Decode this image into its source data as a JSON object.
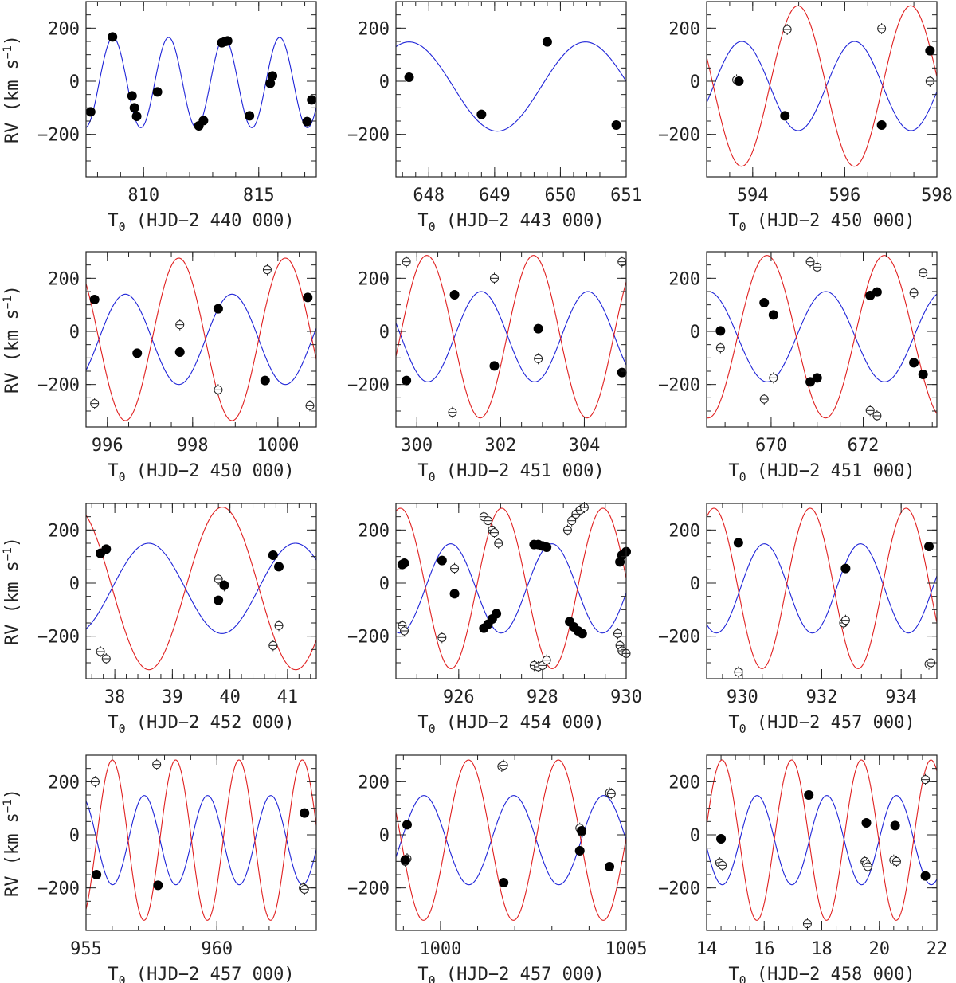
{
  "figure": {
    "ylabel_main": "RV (km s",
    "ylabel_sup": "−1",
    "ylabel_end": ")",
    "xlabel_sub": "0",
    "xlabel_T": "T"
  },
  "chart_data": [
    {
      "type": "scatter",
      "xlim": [
        807.5,
        817.5
      ],
      "ylim": [
        -360,
        300
      ],
      "xticks": [
        810,
        815
      ],
      "xticklabels": [
        "810",
        "815"
      ],
      "yticks": [
        -200,
        0,
        200
      ],
      "yticklabels": [
        "−200",
        "0",
        "200"
      ],
      "xlabel": " (HJD−2 440 000)",
      "blue": {
        "period": 2.413,
        "t0": 808.07,
        "K": 170,
        "gamma": -5
      },
      "red": null,
      "primary": [
        [
          807.7,
          -115
        ],
        [
          808.65,
          167
        ],
        [
          809.5,
          -55
        ],
        [
          809.6,
          -100
        ],
        [
          809.7,
          -132
        ],
        [
          810.6,
          -40
        ],
        [
          812.4,
          -168
        ],
        [
          812.6,
          -148
        ],
        [
          813.4,
          145
        ],
        [
          813.55,
          150
        ],
        [
          813.65,
          152
        ],
        [
          814.6,
          -130
        ],
        [
          815.5,
          -8
        ],
        [
          815.6,
          20
        ],
        [
          817.1,
          -152
        ],
        [
          817.3,
          -70
        ]
      ],
      "secondary": []
    },
    {
      "type": "scatter",
      "xlim": [
        647.5,
        651.0
      ],
      "ylim": [
        -360,
        300
      ],
      "xticks": [
        648,
        649,
        650,
        651
      ],
      "xticklabels": [
        "648",
        "649",
        "650",
        "651"
      ],
      "yticks": [
        -200,
        0,
        200
      ],
      "yticklabels": [
        "−200",
        "0",
        "200"
      ],
      "xlabel": " (HJD−2 443 000)",
      "blue": {
        "period": 2.68,
        "t0": 649.71,
        "K": 168,
        "gamma": -20
      },
      "red": null,
      "primary": [
        [
          647.7,
          15
        ],
        [
          648.8,
          -125
        ],
        [
          649.8,
          148
        ],
        [
          650.85,
          -165
        ]
      ],
      "secondary": []
    },
    {
      "type": "scatter",
      "xlim": [
        593.0,
        598.0
      ],
      "ylim": [
        -360,
        300
      ],
      "xticks": [
        594,
        596,
        598
      ],
      "xticklabels": [
        "594",
        "596",
        "598"
      ],
      "yticks": [
        -200,
        0,
        200
      ],
      "yticklabels": [
        "−200",
        "0",
        "200"
      ],
      "xlabel": " (HJD−2 450 000)",
      "blue": {
        "period": 2.45,
        "t0": 593.15,
        "K": 168,
        "gamma": -18
      },
      "red": {
        "period": 2.45,
        "t0": 594.37,
        "K": 302,
        "gamma": -18
      },
      "primary": [
        [
          593.7,
          0
        ],
        [
          594.7,
          -130
        ],
        [
          596.8,
          -165
        ],
        [
          597.85,
          115
        ]
      ],
      "secondary": [
        [
          593.65,
          5
        ],
        [
          594.75,
          195
        ],
        [
          596.8,
          198
        ],
        [
          597.85,
          0
        ]
      ]
    },
    {
      "type": "scatter",
      "xlim": [
        995.5,
        1000.9
      ],
      "ylim": [
        -360,
        300
      ],
      "xticks": [
        996,
        998,
        1000
      ],
      "xticklabels": [
        "996",
        "998",
        "1000"
      ],
      "yticks": [
        -200,
        0,
        200
      ],
      "yticklabels": [
        "−200",
        "0",
        "200"
      ],
      "xlabel": " (HJD−2 450 000)",
      "blue": {
        "period": 2.5,
        "t0": 995.8,
        "K": 170,
        "gamma": -30
      },
      "red": {
        "period": 2.5,
        "t0": 997.05,
        "K": 306,
        "gamma": -30
      },
      "primary": [
        [
          995.7,
          120
        ],
        [
          996.7,
          -82
        ],
        [
          997.7,
          -78
        ],
        [
          998.6,
          85
        ],
        [
          999.7,
          -185
        ],
        [
          1000.7,
          128
        ]
      ],
      "secondary": [
        [
          995.7,
          -272
        ],
        [
          997.7,
          25
        ],
        [
          998.6,
          -220
        ],
        [
          999.75,
          232
        ],
        [
          1000.75,
          -280
        ]
      ]
    },
    {
      "type": "scatter",
      "xlim": [
        299.5,
        305.0
      ],
      "ylim": [
        -360,
        300
      ],
      "xticks": [
        300,
        302,
        304
      ],
      "xticklabels": [
        "300",
        "302",
        "304"
      ],
      "yticks": [
        -200,
        0,
        200
      ],
      "yticklabels": [
        "−200",
        "0",
        "200"
      ],
      "xlabel": " (HJD−2 451 000)",
      "blue": {
        "period": 2.55,
        "t0": 300.9,
        "K": 170,
        "gamma": -20
      },
      "red": {
        "period": 2.55,
        "t0": 299.6,
        "K": 306,
        "gamma": -20
      },
      "primary": [
        [
          299.75,
          -185
        ],
        [
          300.9,
          138
        ],
        [
          301.85,
          -130
        ],
        [
          302.9,
          10
        ],
        [
          304.9,
          -155
        ]
      ],
      "secondary": [
        [
          299.75,
          262
        ],
        [
          300.85,
          -305
        ],
        [
          301.85,
          200
        ],
        [
          302.9,
          -103
        ],
        [
          304.9,
          262
        ]
      ]
    },
    {
      "type": "scatter",
      "xlim": [
        668.6,
        673.6
      ],
      "ylim": [
        -360,
        300
      ],
      "xticks": [
        670,
        672
      ],
      "xticklabels": [
        "670",
        "672"
      ],
      "yticks": [
        -200,
        0,
        200
      ],
      "yticklabels": [
        "−200",
        "0",
        "200"
      ],
      "xlabel": " (HJD−2 451 000)",
      "blue": {
        "period": 2.55,
        "t0": 670.55,
        "K": 170,
        "gamma": -20
      },
      "red": {
        "period": 2.55,
        "t0": 671.82,
        "K": 306,
        "gamma": -20
      },
      "primary": [
        [
          668.9,
          2
        ],
        [
          669.85,
          108
        ],
        [
          670.05,
          62
        ],
        [
          670.85,
          -190
        ],
        [
          671.0,
          -175
        ],
        [
          672.15,
          135
        ],
        [
          672.3,
          148
        ],
        [
          673.1,
          -118
        ],
        [
          673.3,
          -162
        ]
      ],
      "secondary": [
        [
          668.9,
          -62
        ],
        [
          669.85,
          -255
        ],
        [
          670.05,
          -175
        ],
        [
          670.85,
          262
        ],
        [
          671.0,
          242
        ],
        [
          672.15,
          -298
        ],
        [
          672.3,
          -318
        ],
        [
          673.1,
          145
        ],
        [
          673.3,
          220
        ]
      ]
    },
    {
      "type": "scatter",
      "xlim": [
        37.5,
        41.5
      ],
      "ylim": [
        -360,
        300
      ],
      "xticks": [
        38,
        39,
        40,
        41
      ],
      "xticklabels": [
        "38",
        "39",
        "40",
        "41"
      ],
      "yticks": [
        -200,
        0,
        200
      ],
      "yticklabels": [
        "−200",
        "0",
        "200"
      ],
      "xlabel": " (HJD−2 452 000)",
      "blue": {
        "period": 2.55,
        "t0": 37.95,
        "K": 170,
        "gamma": -20
      },
      "red": {
        "period": 2.55,
        "t0": 39.23,
        "K": 306,
        "gamma": -20
      },
      "primary": [
        [
          37.75,
          112
        ],
        [
          37.85,
          128
        ],
        [
          39.8,
          -65
        ],
        [
          39.9,
          -8
        ],
        [
          40.75,
          105
        ],
        [
          40.85,
          62
        ]
      ],
      "secondary": [
        [
          37.75,
          -258
        ],
        [
          37.85,
          -285
        ],
        [
          39.8,
          15
        ],
        [
          39.9,
          -10
        ],
        [
          40.75,
          -235
        ],
        [
          40.85,
          -160
        ]
      ]
    },
    {
      "type": "scatter",
      "xlim": [
        924.5,
        930.0
      ],
      "ylim": [
        -360,
        300
      ],
      "xticks": [
        926,
        928,
        930
      ],
      "xticklabels": [
        "926",
        "928",
        "930"
      ],
      "yticks": [
        -200,
        0,
        200
      ],
      "yticklabels": [
        "−200",
        "0",
        "200"
      ],
      "xlabel": " (HJD−2 454 000)",
      "blue": {
        "period": 2.42,
        "t0": 925.2,
        "K": 168,
        "gamma": -20
      },
      "red": {
        "period": 2.42,
        "t0": 926.42,
        "K": 302,
        "gamma": -20
      },
      "primary": [
        [
          924.65,
          70
        ],
        [
          924.7,
          75
        ],
        [
          925.6,
          85
        ],
        [
          925.9,
          -40
        ],
        [
          926.6,
          -170
        ],
        [
          926.7,
          -155
        ],
        [
          926.8,
          -135
        ],
        [
          926.9,
          -115
        ],
        [
          927.8,
          145
        ],
        [
          927.9,
          145
        ],
        [
          928.0,
          140
        ],
        [
          928.1,
          135
        ],
        [
          928.65,
          -145
        ],
        [
          928.75,
          -165
        ],
        [
          928.85,
          -180
        ],
        [
          928.95,
          -190
        ],
        [
          929.85,
          80
        ],
        [
          929.9,
          105
        ],
        [
          930.0,
          118
        ]
      ],
      "secondary": [
        [
          924.65,
          -160
        ],
        [
          924.7,
          -180
        ],
        [
          925.6,
          -205
        ],
        [
          925.9,
          55
        ],
        [
          926.6,
          250
        ],
        [
          926.7,
          235
        ],
        [
          926.8,
          200
        ],
        [
          926.85,
          190
        ],
        [
          926.95,
          150
        ],
        [
          927.8,
          -310
        ],
        [
          927.9,
          -315
        ],
        [
          928.0,
          -310
        ],
        [
          928.1,
          -290
        ],
        [
          928.6,
          200
        ],
        [
          928.7,
          235
        ],
        [
          928.8,
          260
        ],
        [
          928.9,
          275
        ],
        [
          929.0,
          285
        ],
        [
          929.8,
          -190
        ],
        [
          929.85,
          -235
        ],
        [
          929.9,
          -255
        ],
        [
          930.0,
          -265
        ]
      ]
    },
    {
      "type": "scatter",
      "xlim": [
        929.1,
        934.9
      ],
      "ylim": [
        -360,
        300
      ],
      "xticks": [
        930,
        932,
        934
      ],
      "xticklabels": [
        "930",
        "932",
        "934"
      ],
      "yticks": [
        -200,
        0,
        200
      ],
      "yticklabels": [
        "−200",
        "0",
        "200"
      ],
      "xlabel": " (HJD−2 457 000)",
      "blue": {
        "period": 2.42,
        "t0": 929.95,
        "K": 168,
        "gamma": -20
      },
      "red": {
        "period": 2.42,
        "t0": 931.1,
        "K": 302,
        "gamma": -20
      },
      "primary": [
        [
          929.9,
          152
        ],
        [
          932.6,
          55
        ],
        [
          934.7,
          138
        ]
      ],
      "secondary": [
        [
          929.9,
          -335
        ],
        [
          932.55,
          -150
        ],
        [
          932.6,
          -140
        ],
        [
          934.7,
          -305
        ],
        [
          934.75,
          -300
        ]
      ]
    },
    {
      "type": "scatter",
      "xlim": [
        955.0,
        963.8
      ],
      "ylim": [
        -360,
        300
      ],
      "xticks": [
        955,
        960
      ],
      "xticklabels": [
        "955",
        "960"
      ],
      "yticks": [
        -200,
        0,
        200
      ],
      "yticklabels": [
        "−200",
        "0",
        "200"
      ],
      "xlabel": " (HJD−2 457 000)",
      "blue": {
        "period": 2.42,
        "t0": 956.62,
        "K": 168,
        "gamma": -20
      },
      "red": {
        "period": 2.42,
        "t0": 955.4,
        "K": 302,
        "gamma": -20
      },
      "primary": [
        [
          955.4,
          -150
        ],
        [
          957.75,
          -190
        ],
        [
          963.35,
          82
        ]
      ],
      "secondary": [
        [
          955.35,
          200
        ],
        [
          957.7,
          265
        ],
        [
          963.3,
          -200
        ],
        [
          963.35,
          -205
        ]
      ]
    },
    {
      "type": "scatter",
      "xlim": [
        998.8,
        1005.0
      ],
      "ylim": [
        -360,
        300
      ],
      "xticks": [
        1000,
        1005
      ],
      "xticklabels": [
        "1000",
        "1005"
      ],
      "yticks": [
        -200,
        0,
        200
      ],
      "yticklabels": [
        "−200",
        "0",
        "200"
      ],
      "xlabel": " (HJD−2 457 000)",
      "blue": {
        "period": 2.42,
        "t0": 1001.37,
        "K": 168,
        "gamma": -20
      },
      "red": {
        "period": 2.42,
        "t0": 1002.57,
        "K": 302,
        "gamma": -20
      },
      "primary": [
        [
          999.1,
          38
        ],
        [
          999.05,
          -95
        ],
        [
          1001.7,
          -180
        ],
        [
          1003.8,
          15
        ],
        [
          1003.75,
          -60
        ],
        [
          1004.55,
          -120
        ]
      ],
      "secondary": [
        [
          999.05,
          -100
        ],
        [
          999.1,
          -90
        ],
        [
          1001.65,
          258
        ],
        [
          1001.7,
          262
        ],
        [
          1003.75,
          25
        ],
        [
          1003.8,
          10
        ],
        [
          1004.55,
          158
        ],
        [
          1004.6,
          155
        ]
      ]
    },
    {
      "type": "scatter",
      "xlim": [
        14.0,
        22.0
      ],
      "ylim": [
        -360,
        300
      ],
      "xticks": [
        14,
        16,
        18,
        20,
        22
      ],
      "xticklabels": [
        "14",
        "16",
        "18",
        "20",
        "22"
      ],
      "yticks": [
        -200,
        0,
        200
      ],
      "yticklabels": [
        "−200",
        "0",
        "200"
      ],
      "xlabel": " (HJD−2 458 000)",
      "blue": {
        "period": 2.42,
        "t0": 15.15,
        "K": 168,
        "gamma": -20
      },
      "red": {
        "period": 2.42,
        "t0": 16.35,
        "K": 302,
        "gamma": -20
      },
      "primary": [
        [
          14.5,
          -15
        ],
        [
          17.55,
          150
        ],
        [
          19.55,
          45
        ],
        [
          20.55,
          35
        ],
        [
          21.6,
          -155
        ]
      ],
      "secondary": [
        [
          14.45,
          -105
        ],
        [
          14.55,
          -115
        ],
        [
          17.5,
          -335
        ],
        [
          19.5,
          -100
        ],
        [
          19.55,
          -110
        ],
        [
          19.6,
          -120
        ],
        [
          20.5,
          -95
        ],
        [
          20.6,
          -100
        ],
        [
          21.6,
          208
        ]
      ]
    }
  ]
}
